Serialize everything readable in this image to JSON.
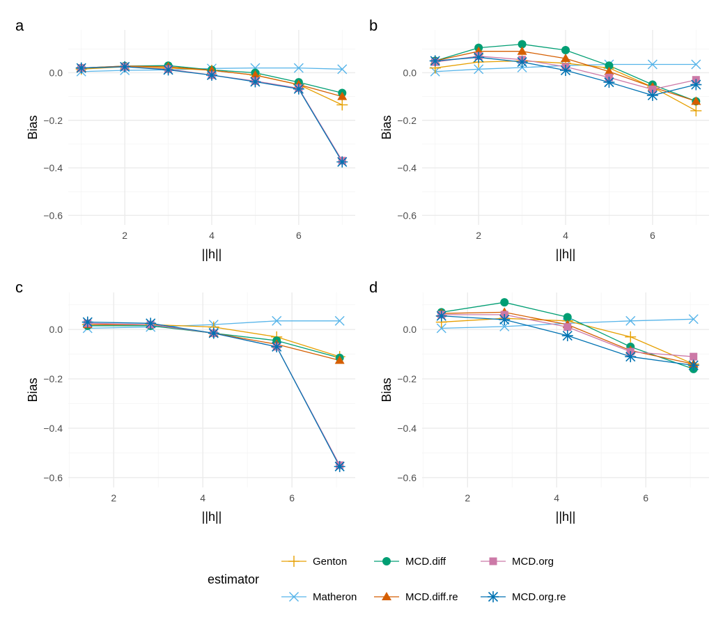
{
  "legend": {
    "title": "estimator",
    "entries": [
      {
        "key": "Genton",
        "label": "Genton"
      },
      {
        "key": "MCD.diff",
        "label": "MCD.diff"
      },
      {
        "key": "MCD.org",
        "label": "MCD.org"
      },
      {
        "key": "Matheron",
        "label": "Matheron"
      },
      {
        "key": "MCD.diff.re",
        "label": "MCD.diff.re"
      },
      {
        "key": "MCD.org.re",
        "label": "MCD.org.re"
      }
    ]
  },
  "styles": {
    "Genton": {
      "color": "#E69F00",
      "shape": "plus"
    },
    "MCD.diff": {
      "color": "#009E73",
      "shape": "circle"
    },
    "MCD.org": {
      "color": "#CC79A7",
      "shape": "square"
    },
    "Matheron": {
      "color": "#56B4E9",
      "shape": "cross"
    },
    "MCD.diff.re": {
      "color": "#D55E00",
      "shape": "triangle"
    },
    "MCD.org.re": {
      "color": "#0072B2",
      "shape": "star"
    }
  },
  "chart_data": [
    {
      "type": "line",
      "panel_label": "a",
      "xlabel": "||h||",
      "ylabel": "Bias",
      "xlim": [
        0.7,
        7.3
      ],
      "ylim": [
        -0.64,
        0.18
      ],
      "xticks": [
        2,
        4,
        6
      ],
      "yticks": [
        0.0,
        -0.2,
        -0.4,
        -0.6
      ],
      "ytick_labels": [
        "0.0",
        "−0.2",
        "−0.4",
        "−0.6"
      ],
      "x": [
        1,
        2,
        3,
        4,
        5,
        6,
        7
      ],
      "series": [
        {
          "name": "Matheron",
          "values": [
            0.005,
            0.01,
            0.012,
            0.018,
            0.02,
            0.02,
            0.015
          ]
        },
        {
          "name": "Genton",
          "values": [
            0.015,
            0.025,
            0.02,
            0.01,
            -0.01,
            -0.05,
            -0.135
          ]
        },
        {
          "name": "MCD.diff",
          "values": [
            0.02,
            0.028,
            0.03,
            0.012,
            0.0,
            -0.04,
            -0.085
          ]
        },
        {
          "name": "MCD.diff.re",
          "values": [
            0.02,
            0.028,
            0.025,
            0.01,
            -0.01,
            -0.05,
            -0.1
          ]
        },
        {
          "name": "MCD.org",
          "values": [
            0.02,
            0.025,
            0.015,
            -0.01,
            -0.035,
            -0.065,
            -0.37
          ]
        },
        {
          "name": "MCD.org.re",
          "values": [
            0.02,
            0.025,
            0.012,
            -0.01,
            -0.038,
            -0.068,
            -0.375
          ]
        }
      ]
    },
    {
      "type": "line",
      "panel_label": "b",
      "xlabel": "||h||",
      "ylabel": "Bias",
      "xlim": [
        0.7,
        7.3
      ],
      "ylim": [
        -0.64,
        0.18
      ],
      "xticks": [
        2,
        4,
        6
      ],
      "yticks": [
        0.0,
        -0.2,
        -0.4,
        -0.6
      ],
      "ytick_labels": [
        "0.0",
        "−0.2",
        "−0.4",
        "−0.6"
      ],
      "x": [
        1,
        2,
        3,
        4,
        5,
        6,
        7
      ],
      "series": [
        {
          "name": "Matheron",
          "values": [
            0.005,
            0.015,
            0.022,
            0.03,
            0.035,
            0.035,
            0.035
          ]
        },
        {
          "name": "Genton",
          "values": [
            0.02,
            0.045,
            0.05,
            0.04,
            0.02,
            -0.06,
            -0.16
          ]
        },
        {
          "name": "MCD.diff",
          "values": [
            0.05,
            0.105,
            0.12,
            0.095,
            0.03,
            -0.05,
            -0.12
          ]
        },
        {
          "name": "MCD.diff.re",
          "values": [
            0.05,
            0.09,
            0.09,
            0.06,
            0.005,
            -0.06,
            -0.12
          ]
        },
        {
          "name": "MCD.org",
          "values": [
            0.045,
            0.07,
            0.055,
            0.025,
            -0.02,
            -0.07,
            -0.03
          ]
        },
        {
          "name": "MCD.org.re",
          "values": [
            0.05,
            0.065,
            0.045,
            0.01,
            -0.04,
            -0.095,
            -0.05
          ]
        }
      ]
    },
    {
      "type": "line",
      "panel_label": "c",
      "xlabel": "||h||",
      "ylabel": "Bias",
      "xlim": [
        0.98,
        7.42
      ],
      "ylim": [
        -0.64,
        0.15
      ],
      "xticks": [
        2,
        4,
        6
      ],
      "yticks": [
        0.0,
        -0.2,
        -0.4,
        -0.6
      ],
      "ytick_labels": [
        "0.0",
        "−0.2",
        "−0.4",
        "−0.6"
      ],
      "x": [
        1.414,
        2.828,
        4.243,
        5.657,
        7.071
      ],
      "series": [
        {
          "name": "Matheron",
          "values": [
            0.005,
            0.01,
            0.02,
            0.035,
            0.035
          ]
        },
        {
          "name": "Genton",
          "values": [
            0.02,
            0.02,
            0.01,
            -0.03,
            -0.11
          ]
        },
        {
          "name": "MCD.diff",
          "values": [
            0.015,
            0.015,
            -0.015,
            -0.045,
            -0.115
          ]
        },
        {
          "name": "MCD.diff.re",
          "values": [
            0.02,
            0.02,
            -0.015,
            -0.06,
            -0.125
          ]
        },
        {
          "name": "MCD.org",
          "values": [
            0.025,
            0.02,
            -0.015,
            -0.07,
            -0.55
          ]
        },
        {
          "name": "MCD.org.re",
          "values": [
            0.03,
            0.025,
            -0.015,
            -0.07,
            -0.555
          ]
        }
      ]
    },
    {
      "type": "line",
      "panel_label": "d",
      "xlabel": "||h||",
      "ylabel": "Bias",
      "xlim": [
        0.98,
        7.42
      ],
      "ylim": [
        -0.64,
        0.15
      ],
      "xticks": [
        2,
        4,
        6
      ],
      "yticks": [
        0.0,
        -0.2,
        -0.4,
        -0.6
      ],
      "ytick_labels": [
        "0.0",
        "−0.2",
        "−0.4",
        "−0.6"
      ],
      "x": [
        1.414,
        2.828,
        4.243,
        5.657,
        7.071
      ],
      "series": [
        {
          "name": "Matheron",
          "values": [
            0.005,
            0.012,
            0.025,
            0.035,
            0.042
          ]
        },
        {
          "name": "Genton",
          "values": [
            0.03,
            0.045,
            0.035,
            -0.03,
            -0.14
          ]
        },
        {
          "name": "MCD.diff",
          "values": [
            0.07,
            0.11,
            0.05,
            -0.07,
            -0.16
          ]
        },
        {
          "name": "MCD.diff.re",
          "values": [
            0.065,
            0.07,
            0.02,
            -0.085,
            -0.14
          ]
        },
        {
          "name": "MCD.org",
          "values": [
            0.06,
            0.06,
            0.01,
            -0.09,
            -0.11
          ]
        },
        {
          "name": "MCD.org.re",
          "values": [
            0.055,
            0.04,
            -0.025,
            -0.11,
            -0.145
          ]
        }
      ]
    }
  ]
}
